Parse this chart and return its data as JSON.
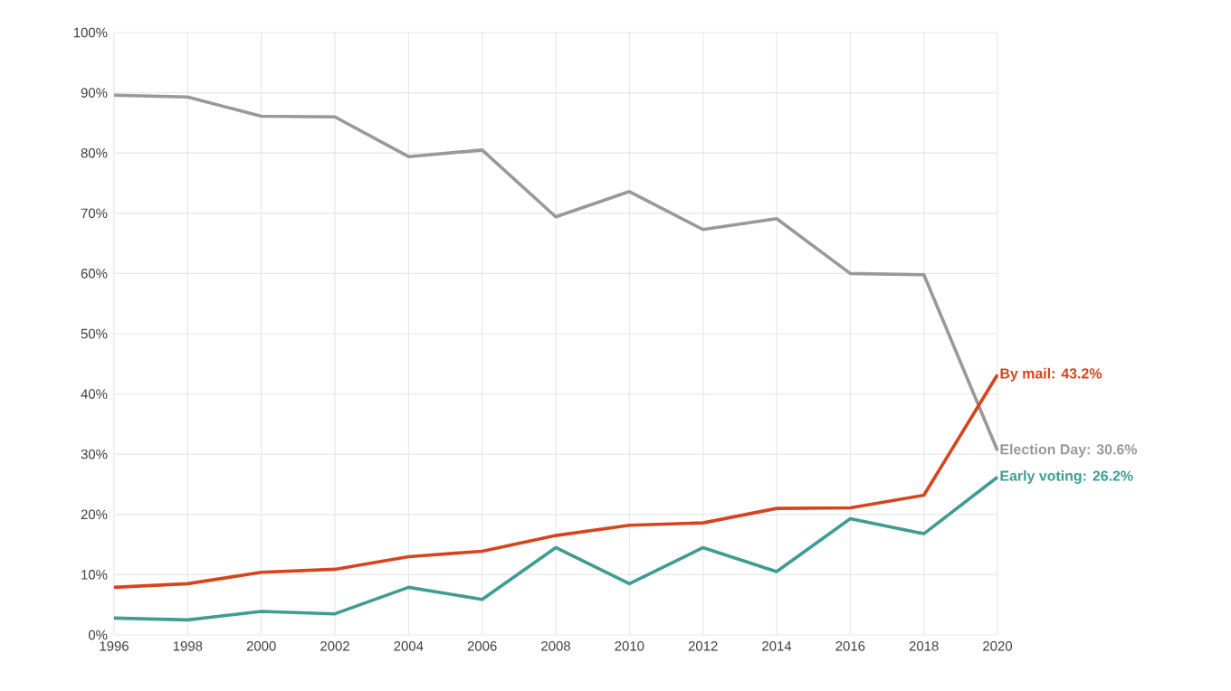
{
  "chart_data": {
    "type": "line",
    "x": [
      1996,
      1998,
      2000,
      2002,
      2004,
      2006,
      2008,
      2010,
      2012,
      2014,
      2016,
      2018,
      2020
    ],
    "series": [
      {
        "color": "#999999",
        "values": [
          89.6,
          89.3,
          86.1,
          86.0,
          79.4,
          80.5,
          69.4,
          73.6,
          67.3,
          69.1,
          60.0,
          59.8,
          30.6
        ]
      },
      {
        "color": "#d6431d",
        "values": [
          7.9,
          8.5,
          10.4,
          10.9,
          13.0,
          13.9,
          16.5,
          18.2,
          18.6,
          21.0,
          21.1,
          23.2,
          43.2
        ]
      },
      {
        "color": "#3e9c94",
        "values": [
          2.8,
          2.5,
          3.9,
          3.5,
          7.9,
          5.9,
          14.5,
          8.5,
          14.5,
          10.5,
          19.3,
          16.8,
          26.2
        ]
      }
    ],
    "annotations": [
      "Election Day: 30.6%",
      "By mail: 43.2%",
      "Early voting: 26.2%"
    ],
    "xlim": [
      1996,
      2020
    ],
    "xticks": [
      1996,
      1998,
      2000,
      2002,
      2004,
      2006,
      2008,
      2010,
      2012,
      2014,
      2016,
      2018,
      2020
    ],
    "ylim": [
      0,
      100
    ],
    "yticks": [
      {
        "value": 0,
        "label": "0%"
      },
      {
        "value": 10,
        "label": "10%"
      },
      {
        "value": 20,
        "label": "20%"
      },
      {
        "value": 30,
        "label": "30%"
      },
      {
        "value": 40,
        "label": "40%"
      },
      {
        "value": 50,
        "label": "50%"
      },
      {
        "value": 60,
        "label": "60%"
      },
      {
        "value": 70,
        "label": "70%"
      },
      {
        "value": 80,
        "label": "80%"
      },
      {
        "value": 90,
        "label": "90%"
      },
      {
        "value": 100,
        "label": "100%"
      }
    ],
    "grid": true,
    "marker": "none",
    "line_style": "solid"
  }
}
